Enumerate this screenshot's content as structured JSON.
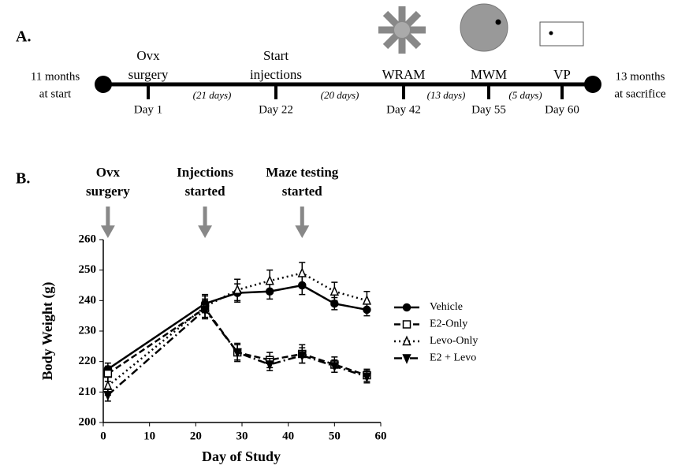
{
  "panel_a": {
    "label": "A.",
    "start": [
      "11 months",
      "at start"
    ],
    "end": [
      "13 months",
      "at sacrifice"
    ],
    "events": [
      {
        "name": [
          "Ovx",
          "surgery"
        ],
        "day": "Day 1"
      },
      {
        "name": [
          "Start",
          "injections"
        ],
        "day": "Day 22"
      },
      {
        "name": [
          "WRAM"
        ],
        "day": "Day 42"
      },
      {
        "name": [
          "MWM"
        ],
        "day": "Day 55"
      },
      {
        "name": [
          "VP"
        ],
        "day": "Day 60"
      }
    ],
    "intervals": [
      "(21 days)",
      "(20 days)",
      "(13 days)",
      "(5 days)"
    ]
  },
  "chart_data": {
    "type": "line",
    "panel_label": "B.",
    "xlabel": "Day of Study",
    "ylabel": "Body Weight (g)",
    "x": [
      1,
      22,
      29,
      36,
      43,
      50,
      57
    ],
    "xlim": [
      0,
      60
    ],
    "xticks": [
      0,
      10,
      20,
      30,
      40,
      50,
      60
    ],
    "ylim": [
      200,
      260
    ],
    "yticks": [
      200,
      210,
      220,
      230,
      240,
      250,
      260
    ],
    "annotations": [
      {
        "text": [
          "Ovx",
          "surgery"
        ],
        "x": 1
      },
      {
        "text": [
          "Injections",
          "started"
        ],
        "x": 22
      },
      {
        "text": [
          "Maze testing",
          "started"
        ],
        "x": 43
      }
    ],
    "series": [
      {
        "name": "Vehicle",
        "color": "#000000",
        "marker": "circle",
        "line_style": "solid",
        "values": [
          217.5,
          239,
          242.5,
          243,
          245,
          239,
          237
        ],
        "errors": [
          2,
          3,
          3,
          2.5,
          3,
          2,
          2
        ]
      },
      {
        "name": "E2-Only",
        "color": "#000000",
        "marker": "square",
        "line_style": "dashed",
        "values": [
          216,
          237.5,
          223,
          220.5,
          222.5,
          219,
          215.5
        ],
        "errors": [
          2.5,
          3,
          3,
          2.5,
          3,
          2.5,
          2
        ]
      },
      {
        "name": "Levo-Only",
        "color": "#000000",
        "marker": "triangle",
        "line_style": "dotted",
        "values": [
          212,
          238,
          243.5,
          246.5,
          249,
          243,
          240
        ],
        "errors": [
          3,
          3.5,
          3.5,
          3.5,
          3.5,
          3,
          3
        ]
      },
      {
        "name": "E2 + Levo",
        "color": "#000000",
        "marker": "triangle-down",
        "line_style": "dashdot",
        "values": [
          209,
          237,
          223,
          219,
          222,
          218.5,
          215
        ],
        "errors": [
          2,
          3,
          2.5,
          2,
          2.5,
          2,
          2
        ]
      }
    ]
  }
}
